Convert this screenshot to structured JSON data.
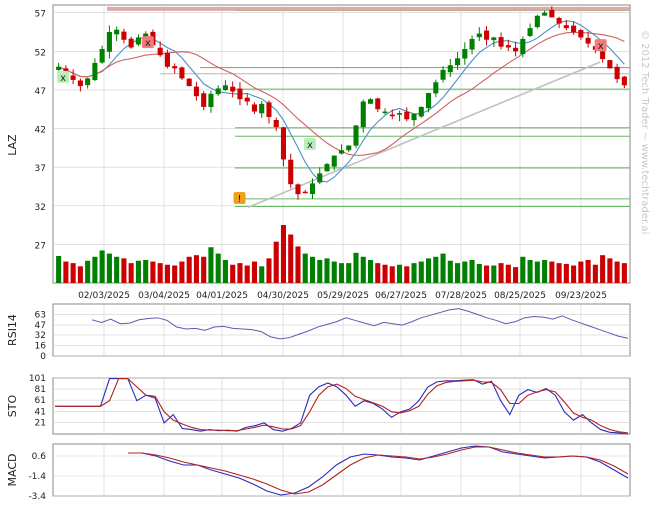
{
  "ticker": "LAZ",
  "watermark": "© 2012 Tech Trader ~ www.techtrader.ai",
  "colors": {
    "up": "#008000",
    "down": "#cc0000",
    "sma_fast": "#4a90c8",
    "sma_slow": "#d06060",
    "osc_fast": "#2b2bb8",
    "osc_slow": "#b22222",
    "rsi": "#5b5bb0",
    "grid": "#cfcfcf",
    "level": "#66bb66",
    "resistance": "#d9a0a0",
    "trend": "#c0c0c0"
  },
  "chart_data": [
    {
      "type": "candlestick",
      "ylabel": "LAZ",
      "ylim": [
        22,
        58
      ],
      "yticks": [
        27,
        32,
        37,
        42,
        47,
        52,
        57
      ],
      "x_labels": [
        "02/03/2025",
        "03/04/2025",
        "04/01/2025",
        "04/30/2025",
        "05/29/2025",
        "06/27/2025",
        "07/28/2025",
        "08/25/2025",
        "09/23/2025"
      ],
      "closes": [
        50.0,
        49.2,
        48.3,
        47.5,
        48.5,
        50.5,
        52.3,
        54.5,
        54.8,
        53.5,
        52.5,
        53.8,
        54.3,
        52.8,
        51.5,
        50.0,
        49.8,
        48.5,
        47.5,
        46.2,
        44.8,
        46.5,
        47.2,
        47.6,
        46.8,
        45.8,
        45.5,
        44.2,
        45.2,
        43.5,
        42.2,
        38.0,
        34.8,
        33.5,
        33.8,
        34.9,
        36.2,
        37.4,
        38.5,
        39.2,
        39.8,
        42.4,
        45.5,
        45.8,
        44.5,
        44.2,
        43.6,
        44.0,
        43.2,
        43.9,
        44.8,
        46.6,
        48.0,
        49.6,
        50.2,
        51.1,
        52.3,
        53.6,
        54.3,
        53.5,
        53.8,
        52.6,
        52.5,
        52.0,
        53.6,
        55.0,
        56.6,
        57.0,
        56.4,
        55.6,
        55.0,
        54.5,
        53.8,
        53.0,
        52.2,
        51.0,
        49.8,
        48.4,
        47.6
      ],
      "volumes": [
        34,
        27,
        25,
        21,
        28,
        33,
        41,
        37,
        33,
        31,
        25,
        28,
        29,
        27,
        25,
        23,
        22,
        27,
        33,
        35,
        33,
        45,
        37,
        29,
        23,
        25,
        22,
        27,
        21,
        31,
        52,
        73,
        61,
        46,
        37,
        33,
        29,
        31,
        27,
        25,
        25,
        38,
        33,
        29,
        25,
        23,
        21,
        23,
        21,
        25,
        27,
        31,
        33,
        37,
        28,
        25,
        27,
        29,
        24,
        22,
        22,
        25,
        23,
        20,
        33,
        29,
        27,
        29,
        27,
        25,
        24,
        22,
        27,
        29,
        23,
        35,
        31,
        27,
        25
      ],
      "series": [
        {
          "name": "fast moving average",
          "role": "sma_fast"
        },
        {
          "name": "slow moving average",
          "role": "sma_slow"
        }
      ],
      "markers": [
        {
          "label": "x",
          "date": "01/13/2025",
          "kind": "buy"
        },
        {
          "label": "x",
          "date": "02/24/2025",
          "kind": "sell"
        },
        {
          "label": "!",
          "date": "04/08/2025",
          "kind": "alert"
        },
        {
          "label": "x",
          "date": "05/12/2025",
          "kind": "buy"
        },
        {
          "label": "x",
          "date": "10/02/2025",
          "kind": "sell"
        }
      ],
      "levels": [
        57.3,
        47.1,
        42.1,
        41.0,
        36.9,
        32.9,
        31.9
      ],
      "resistance": 57.5,
      "support_lines": [
        49.9,
        49.1
      ],
      "trendline": {
        "from_date": "04/08/2025",
        "from_value": 31.8,
        "to_date": "10/06/2025",
        "to_value": 50.6
      }
    },
    {
      "type": "line",
      "ylabel": "RSI14",
      "ylim": [
        0,
        79
      ],
      "yticks": [
        63,
        47,
        32,
        16,
        0
      ],
      "series": [
        {
          "name": "RSI14",
          "values": [
            55,
            51,
            56,
            49,
            50,
            55,
            57,
            58,
            54,
            44,
            41,
            42,
            39,
            44,
            45,
            42,
            41,
            40,
            37,
            29,
            26,
            28,
            33,
            38,
            44,
            48,
            52,
            58,
            54,
            50,
            46,
            51,
            49,
            47,
            52,
            58,
            62,
            66,
            70,
            72,
            68,
            63,
            58,
            54,
            49,
            52,
            58,
            60,
            59,
            56,
            61,
            55,
            50,
            45,
            40,
            35,
            30,
            27
          ]
        }
      ]
    },
    {
      "type": "line",
      "ylabel": "STO",
      "ylim": [
        0,
        101
      ],
      "yticks": [
        101,
        81,
        61,
        41,
        21
      ],
      "series": [
        {
          "name": "%K",
          "values": [
            50,
            50,
            50,
            50,
            50,
            50,
            100,
            100,
            100,
            60,
            70,
            65,
            20,
            35,
            10,
            8,
            5,
            8,
            6,
            7,
            5,
            12,
            15,
            20,
            8,
            5,
            10,
            20,
            70,
            85,
            92,
            85,
            70,
            50,
            60,
            55,
            45,
            30,
            40,
            45,
            60,
            85,
            94,
            96,
            96,
            97,
            98,
            90,
            95,
            60,
            35,
            70,
            80,
            75,
            82,
            70,
            40,
            25,
            35,
            20,
            8,
            3,
            2,
            0
          ]
        },
        {
          "name": "%D",
          "values": [
            50,
            50,
            50,
            50,
            50,
            50,
            60,
            100,
            100,
            85,
            70,
            68,
            40,
            25,
            18,
            12,
            8,
            7,
            7,
            6,
            6,
            9,
            12,
            16,
            13,
            9,
            9,
            15,
            40,
            70,
            85,
            90,
            82,
            68,
            62,
            56,
            50,
            40,
            38,
            42,
            50,
            72,
            87,
            93,
            95,
            96,
            97,
            94,
            93,
            80,
            55,
            55,
            70,
            76,
            80,
            76,
            58,
            38,
            30,
            25,
            15,
            8,
            4,
            2
          ]
        }
      ]
    },
    {
      "type": "line",
      "ylabel": "MACD",
      "ylim": [
        -3.4,
        1.8
      ],
      "yticks": [
        0.6,
        -1.4,
        -3.4
      ],
      "series": [
        {
          "name": "MACD",
          "values": [
            0.9,
            0.9,
            0.6,
            0.1,
            -0.3,
            -0.3,
            -0.8,
            -1.2,
            -1.6,
            -2.2,
            -2.9,
            -3.3,
            -3.1,
            -2.5,
            -1.5,
            -0.3,
            0.5,
            0.8,
            0.7,
            0.5,
            0.4,
            0.2,
            0.6,
            1.0,
            1.4,
            1.6,
            1.5,
            1.0,
            0.8,
            0.6,
            0.4,
            0.5,
            0.6,
            0.5,
            0.0,
            -0.8,
            -1.6
          ]
        },
        {
          "name": "Signal",
          "values": [
            0.9,
            0.9,
            0.7,
            0.4,
            0.0,
            -0.3,
            -0.6,
            -0.9,
            -1.3,
            -1.7,
            -2.2,
            -2.8,
            -3.2,
            -3.0,
            -2.3,
            -1.3,
            -0.3,
            0.4,
            0.7,
            0.6,
            0.5,
            0.3,
            0.5,
            0.8,
            1.2,
            1.5,
            1.5,
            1.2,
            0.9,
            0.7,
            0.5,
            0.5,
            0.6,
            0.5,
            0.2,
            -0.4,
            -1.2
          ]
        }
      ]
    }
  ]
}
